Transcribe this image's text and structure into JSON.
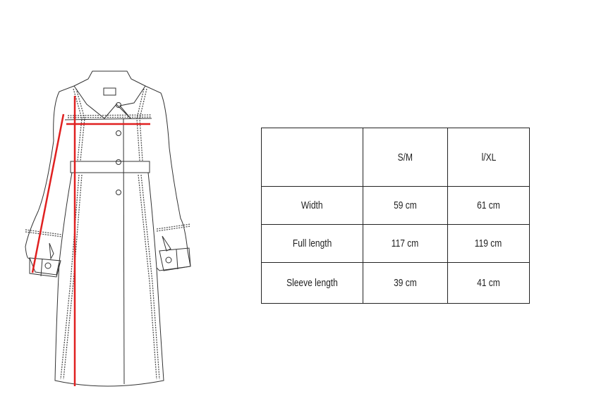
{
  "size_table": {
    "columns": [
      "",
      "S/M",
      "l/XL"
    ],
    "rows": [
      {
        "label": "Width",
        "values": [
          "59 cm",
          "61 cm"
        ]
      },
      {
        "label": "Full length",
        "values": [
          "117 cm",
          "119 cm"
        ]
      },
      {
        "label": "Sleeve length",
        "values": [
          "39 cm",
          "41 cm"
        ]
      }
    ]
  },
  "illustration": {
    "subject": "coat-technical-drawing",
    "measure_line_color": "#e02020",
    "outline_color": "#333333"
  }
}
